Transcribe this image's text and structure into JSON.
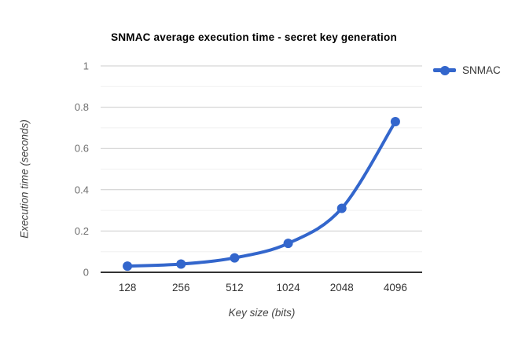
{
  "chart_data": {
    "type": "line",
    "title": "SNMAC average execution time - secret key generation",
    "xlabel": "Key size (bits)",
    "ylabel": "Execution time (seconds)",
    "categories": [
      "128",
      "256",
      "512",
      "1024",
      "2048",
      "4096"
    ],
    "series": [
      {
        "name": "SNMAC",
        "color": "#3366cc",
        "values": [
          0.03,
          0.04,
          0.07,
          0.14,
          0.31,
          0.73
        ]
      }
    ],
    "ylim": [
      0,
      1
    ],
    "yticks": [
      0,
      0.2,
      0.4,
      0.6,
      0.8,
      1
    ],
    "y_minor_ticks": [
      0.1,
      0.3,
      0.5,
      0.7,
      0.9
    ],
    "grid": "on",
    "curve": "smooth",
    "legend_position": "right",
    "colors": {
      "background": "#ffffff",
      "major_gridline": "#cccccc",
      "minor_gridline": "#f0f0f0",
      "baseline": "#333333",
      "y_tick_label": "#6e6e6e",
      "x_tick_label": "#333333",
      "title_text": "#000000",
      "axis_title_text": "#444444",
      "legend_text": "#333333"
    }
  }
}
